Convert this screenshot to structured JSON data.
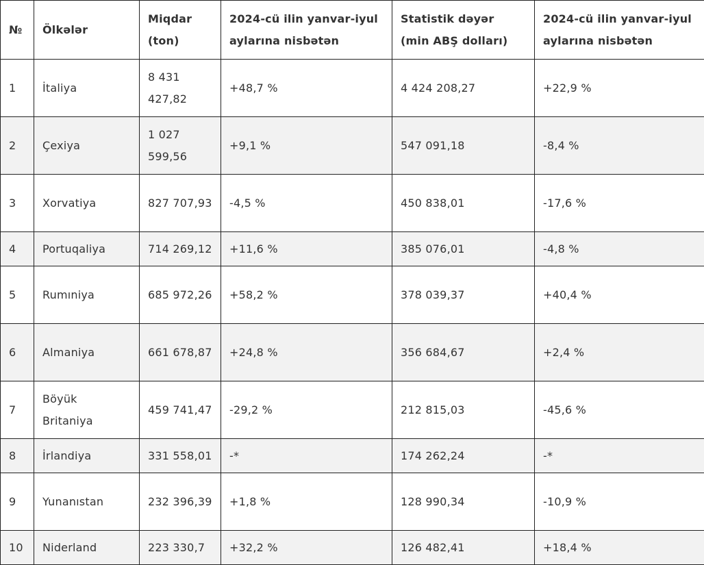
{
  "table": {
    "headers": [
      "№",
      "Ölkələr",
      "Miqdar (ton)",
      "2024-cü ilin yanvar-iyul aylarına nisbətən",
      "Statistik dəyər (min ABŞ dolları)",
      "2024-cü ilin yanvar-iyul aylarına nisbətən"
    ],
    "rows": [
      [
        "1",
        "İtaliya",
        "8 431 427,82",
        "+48,7 %",
        "4 424 208,27",
        "+22,9 %"
      ],
      [
        "2",
        "Çexiya",
        "1 027 599,56",
        "+9,1 %",
        "547 091,18",
        "-8,4 %"
      ],
      [
        "3",
        "Xorvatiya",
        "827 707,93",
        "-4,5 %",
        "450 838,01",
        "-17,6 %"
      ],
      [
        "4",
        "Portuqaliya",
        "714 269,12",
        "+11,6 %",
        "385 076,01",
        "-4,8 %"
      ],
      [
        "5",
        "Rumıniya",
        "685 972,26",
        "+58,2 %",
        "378 039,37",
        "+40,4 %"
      ],
      [
        "6",
        "Almaniya",
        "661 678,87",
        "+24,8 %",
        "356 684,67",
        "+2,4 %"
      ],
      [
        "7",
        "Böyük Britaniya",
        "459 741,47",
        "-29,2 %",
        "212 815,03",
        "-45,6 %"
      ],
      [
        "8",
        "İrlandiya",
        "331 558,01",
        "-*",
        "174 262,24",
        "-*"
      ],
      [
        "9",
        "Yunanıstan",
        "232 396,39",
        "+1,8 %",
        "128 990,34",
        "-10,9 %"
      ],
      [
        "10",
        "Niderland",
        "223 330,7",
        "+32,2 %",
        "126 482,41",
        "+18,4 %"
      ]
    ]
  }
}
